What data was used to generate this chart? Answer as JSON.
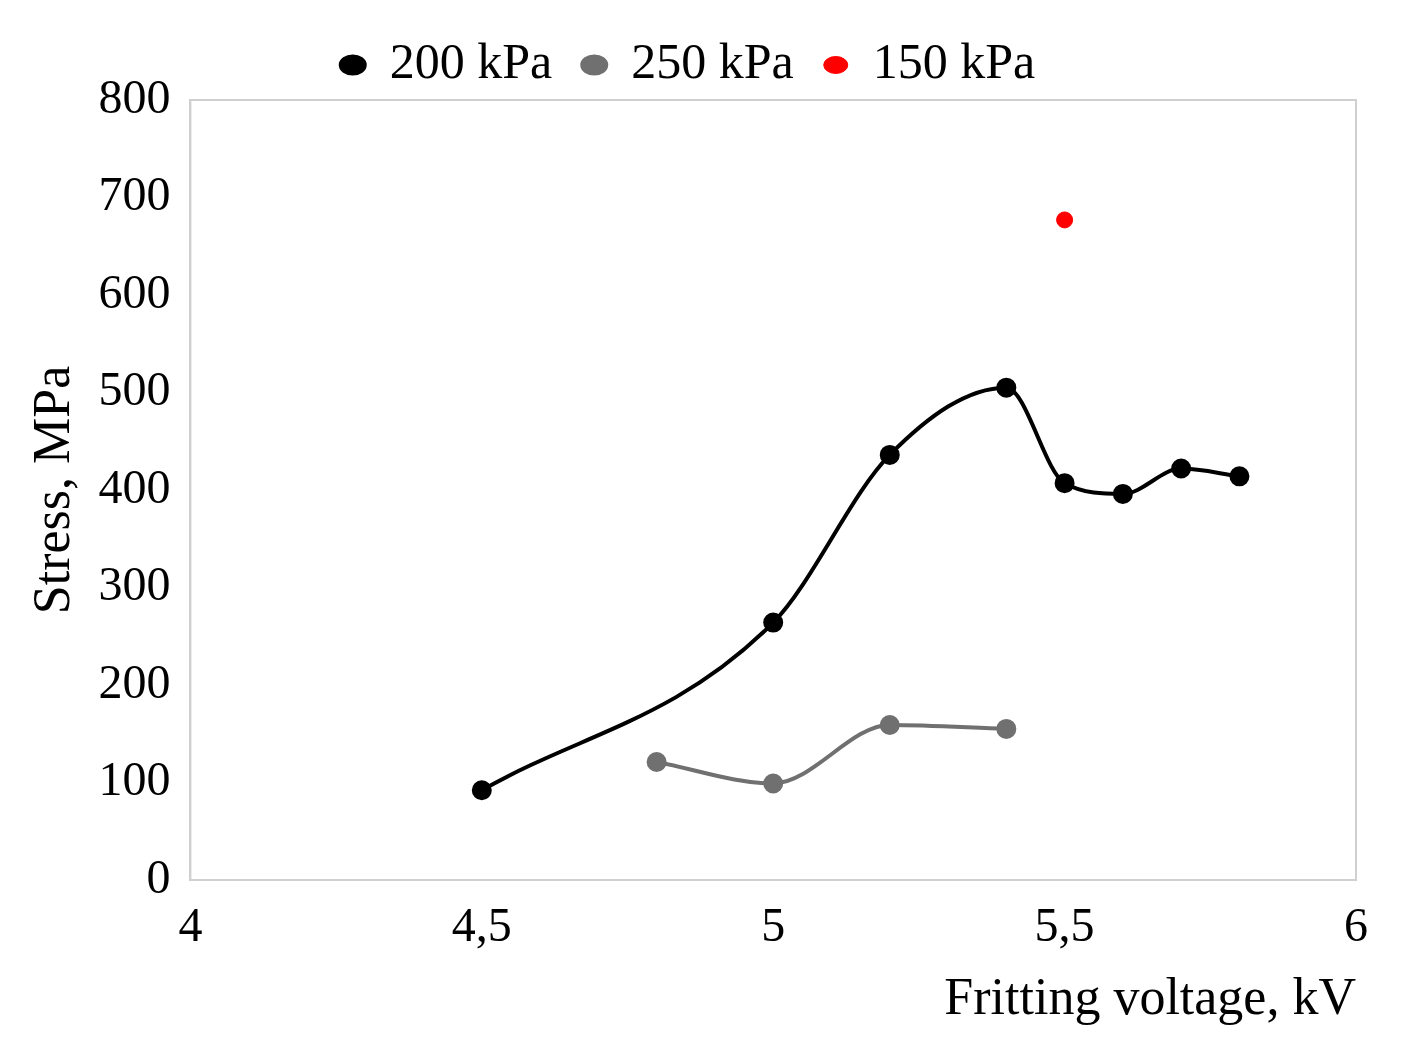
{
  "chart_data": {
    "type": "line",
    "xlabel": "Fritting voltage, kV",
    "ylabel": "Stress, MPa",
    "xlim": [
      4,
      6
    ],
    "ylim": [
      0,
      800
    ],
    "xticks": [
      4,
      {
        "value": 4.5,
        "label": "4,5"
      },
      5,
      {
        "value": 5.5,
        "label": "5,5"
      },
      6
    ],
    "yticks": [
      0,
      100,
      200,
      300,
      400,
      500,
      600,
      700,
      800
    ],
    "legend": "top",
    "marker": "circle",
    "series": [
      {
        "name": "200 kPa",
        "color": "#000000",
        "x": [
          4.5,
          5.0,
          5.2,
          5.4,
          5.5,
          5.6,
          5.7,
          5.8
        ],
        "values": [
          92,
          264,
          436,
          505,
          407,
          396,
          422,
          414
        ]
      },
      {
        "name": "250 kPa",
        "color": "#707070",
        "x": [
          4.8,
          5.0,
          5.2,
          5.4
        ],
        "values": [
          121,
          99,
          159,
          155
        ]
      },
      {
        "name": "150 kPa",
        "type": "scatter",
        "color": "#ff0000",
        "x": [
          5.5
        ],
        "values": [
          677
        ]
      }
    ]
  }
}
